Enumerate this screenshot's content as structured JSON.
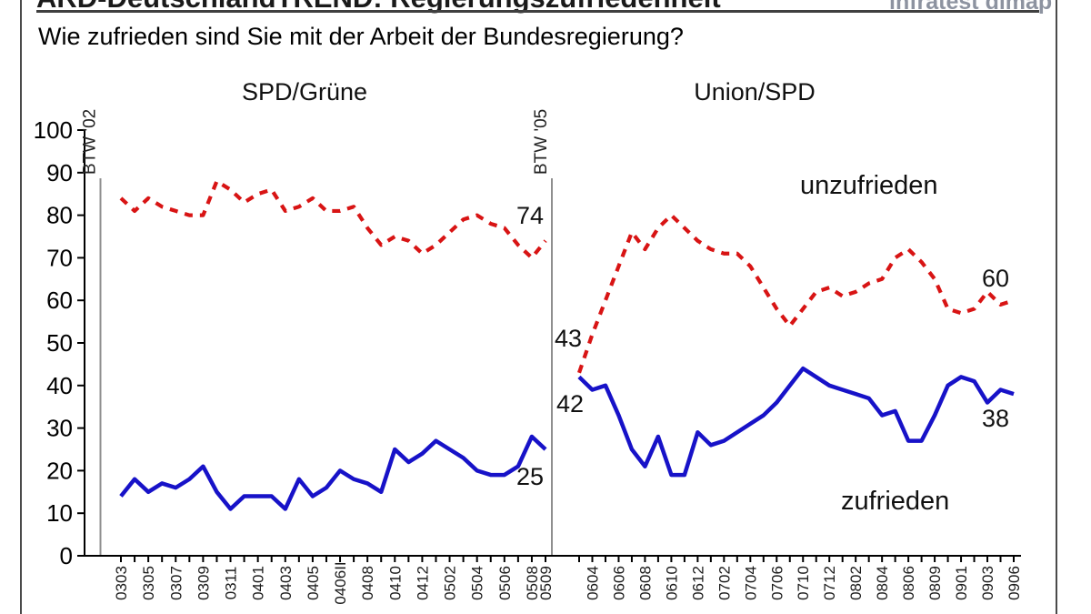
{
  "page": {
    "title": "ARD-DeutschlandTREND: Regierungszufriedenheit",
    "brand": "infratest dimap",
    "question": "Wie zufrieden sind Sie mit der Arbeit der Bundesregierung?"
  },
  "chart_data": {
    "type": "line",
    "title": "Regierungszufriedenheit",
    "xlabel": "",
    "ylabel": "",
    "ylim": [
      0,
      100
    ],
    "grid": false,
    "legend_position": "inline-annotations",
    "y_ticks": [
      100,
      90,
      80,
      70,
      60,
      50,
      40,
      30,
      20,
      10,
      0
    ],
    "series_styles": {
      "unzufrieden": {
        "color": "#d81414",
        "dash": true
      },
      "zufrieden": {
        "color": "#1712c8",
        "dash": false
      }
    },
    "sections": [
      {
        "title": "SPD/Grüne",
        "divider_label": "BTW '02",
        "x_tick_labels": [
          "0303",
          "0305",
          "0307",
          "0309",
          "0311",
          "0401",
          "0403",
          "0405",
          "0406II",
          "0408",
          "0410",
          "0412",
          "0502",
          "0504",
          "0506",
          "0508",
          "0509"
        ],
        "label_point_indices": [
          0,
          2,
          4,
          6,
          8,
          10,
          12,
          14,
          16,
          18,
          20,
          22,
          24,
          26,
          28,
          30,
          31
        ],
        "series": [
          {
            "name": "unzufrieden",
            "values": [
              84,
              81,
              84,
              82,
              81,
              80,
              80,
              88,
              86,
              83,
              85,
              86,
              81,
              82,
              84,
              81,
              81,
              82,
              77,
              73,
              75,
              74,
              71,
              73,
              76,
              79,
              80,
              78,
              77,
              73,
              70,
              74
            ],
            "end_label": "74"
          },
          {
            "name": "zufrieden",
            "values": [
              14,
              18,
              15,
              17,
              16,
              18,
              21,
              15,
              11,
              14,
              14,
              14,
              11,
              18,
              14,
              16,
              20,
              18,
              17,
              15,
              25,
              22,
              24,
              27,
              25,
              23,
              20,
              19,
              19,
              21,
              28,
              25
            ],
            "end_label": "25"
          }
        ]
      },
      {
        "title": "Union/SPD",
        "divider_label": "BTW '05",
        "x_tick_labels": [
          "0604",
          "0606",
          "0608",
          "0610",
          "0612",
          "0702",
          "0704",
          "0706",
          "0710",
          "0712",
          "0802",
          "0804",
          "0806",
          "0809",
          "0901",
          "0903",
          "0906"
        ],
        "label_point_indices": [
          1,
          3,
          5,
          7,
          9,
          11,
          13,
          15,
          17,
          19,
          21,
          23,
          25,
          27,
          29,
          31,
          33
        ],
        "series": [
          {
            "name": "unzufrieden",
            "values": [
              43,
              52,
              60,
              68,
              76,
              72,
              77,
              80,
              77,
              74,
              72,
              71,
              71,
              68,
              63,
              58,
              54,
              58,
              62,
              63,
              61,
              62,
              64,
              65,
              70,
              72,
              69,
              65,
              58,
              57,
              58,
              62,
              59,
              60
            ],
            "start_label": "43",
            "end_label": "60"
          },
          {
            "name": "zufrieden",
            "values": [
              42,
              39,
              40,
              33,
              25,
              21,
              28,
              19,
              19,
              29,
              26,
              27,
              29,
              31,
              33,
              36,
              40,
              44,
              42,
              40,
              39,
              38,
              37,
              33,
              34,
              27,
              27,
              33,
              40,
              42,
              41,
              36,
              39,
              38
            ],
            "start_label": "42",
            "end_label": "38"
          }
        ]
      }
    ]
  }
}
